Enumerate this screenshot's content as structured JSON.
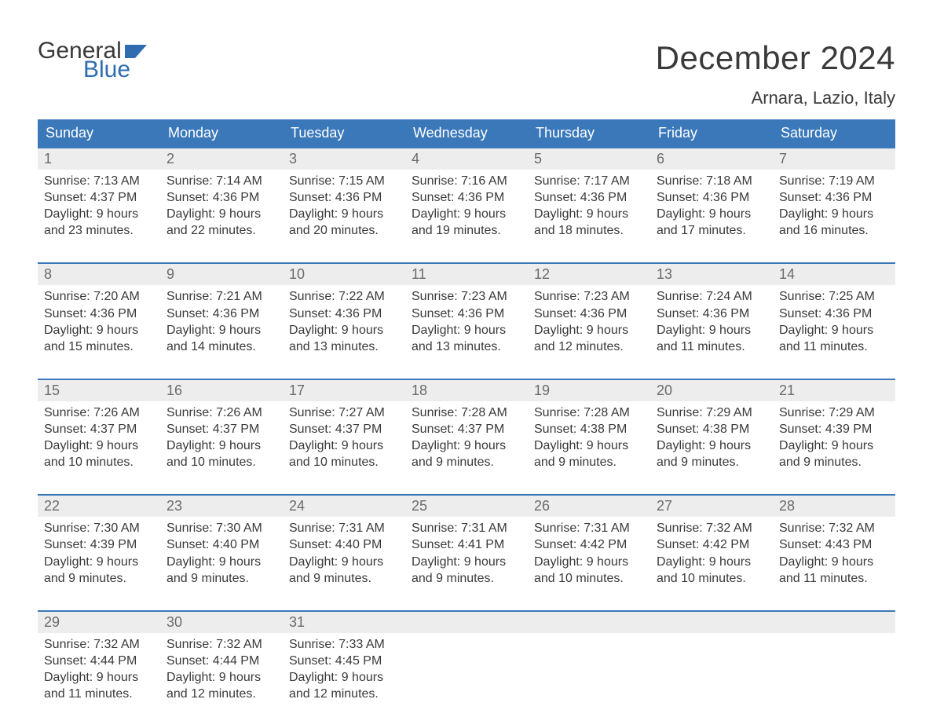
{
  "brand": {
    "word1": "General",
    "word2": "Blue"
  },
  "colors": {
    "header_bg": "#3a78b9",
    "header_text": "#ffffff",
    "daynum_bg": "#ededed",
    "daynum_text": "#6b6b6b",
    "body_text": "#3a3a3a",
    "week_border": "#3a78b9",
    "brand_blue": "#2f6db0",
    "page_bg": "#ffffff"
  },
  "typography": {
    "month_title_fontsize": 42,
    "location_fontsize": 22,
    "dow_fontsize": 18,
    "daynum_fontsize": 18,
    "body_fontsize": 16
  },
  "title": "December 2024",
  "location": "Arnara, Lazio, Italy",
  "days_of_week": [
    "Sunday",
    "Monday",
    "Tuesday",
    "Wednesday",
    "Thursday",
    "Friday",
    "Saturday"
  ],
  "layout": {
    "columns": 7,
    "rows": 5
  },
  "weeks": [
    [
      {
        "n": "1",
        "sunrise": "Sunrise: 7:13 AM",
        "sunset": "Sunset: 4:37 PM",
        "daylight": "Daylight: 9 hours and 23 minutes."
      },
      {
        "n": "2",
        "sunrise": "Sunrise: 7:14 AM",
        "sunset": "Sunset: 4:36 PM",
        "daylight": "Daylight: 9 hours and 22 minutes."
      },
      {
        "n": "3",
        "sunrise": "Sunrise: 7:15 AM",
        "sunset": "Sunset: 4:36 PM",
        "daylight": "Daylight: 9 hours and 20 minutes."
      },
      {
        "n": "4",
        "sunrise": "Sunrise: 7:16 AM",
        "sunset": "Sunset: 4:36 PM",
        "daylight": "Daylight: 9 hours and 19 minutes."
      },
      {
        "n": "5",
        "sunrise": "Sunrise: 7:17 AM",
        "sunset": "Sunset: 4:36 PM",
        "daylight": "Daylight: 9 hours and 18 minutes."
      },
      {
        "n": "6",
        "sunrise": "Sunrise: 7:18 AM",
        "sunset": "Sunset: 4:36 PM",
        "daylight": "Daylight: 9 hours and 17 minutes."
      },
      {
        "n": "7",
        "sunrise": "Sunrise: 7:19 AM",
        "sunset": "Sunset: 4:36 PM",
        "daylight": "Daylight: 9 hours and 16 minutes."
      }
    ],
    [
      {
        "n": "8",
        "sunrise": "Sunrise: 7:20 AM",
        "sunset": "Sunset: 4:36 PM",
        "daylight": "Daylight: 9 hours and 15 minutes."
      },
      {
        "n": "9",
        "sunrise": "Sunrise: 7:21 AM",
        "sunset": "Sunset: 4:36 PM",
        "daylight": "Daylight: 9 hours and 14 minutes."
      },
      {
        "n": "10",
        "sunrise": "Sunrise: 7:22 AM",
        "sunset": "Sunset: 4:36 PM",
        "daylight": "Daylight: 9 hours and 13 minutes."
      },
      {
        "n": "11",
        "sunrise": "Sunrise: 7:23 AM",
        "sunset": "Sunset: 4:36 PM",
        "daylight": "Daylight: 9 hours and 13 minutes."
      },
      {
        "n": "12",
        "sunrise": "Sunrise: 7:23 AM",
        "sunset": "Sunset: 4:36 PM",
        "daylight": "Daylight: 9 hours and 12 minutes."
      },
      {
        "n": "13",
        "sunrise": "Sunrise: 7:24 AM",
        "sunset": "Sunset: 4:36 PM",
        "daylight": "Daylight: 9 hours and 11 minutes."
      },
      {
        "n": "14",
        "sunrise": "Sunrise: 7:25 AM",
        "sunset": "Sunset: 4:36 PM",
        "daylight": "Daylight: 9 hours and 11 minutes."
      }
    ],
    [
      {
        "n": "15",
        "sunrise": "Sunrise: 7:26 AM",
        "sunset": "Sunset: 4:37 PM",
        "daylight": "Daylight: 9 hours and 10 minutes."
      },
      {
        "n": "16",
        "sunrise": "Sunrise: 7:26 AM",
        "sunset": "Sunset: 4:37 PM",
        "daylight": "Daylight: 9 hours and 10 minutes."
      },
      {
        "n": "17",
        "sunrise": "Sunrise: 7:27 AM",
        "sunset": "Sunset: 4:37 PM",
        "daylight": "Daylight: 9 hours and 10 minutes."
      },
      {
        "n": "18",
        "sunrise": "Sunrise: 7:28 AM",
        "sunset": "Sunset: 4:37 PM",
        "daylight": "Daylight: 9 hours and 9 minutes."
      },
      {
        "n": "19",
        "sunrise": "Sunrise: 7:28 AM",
        "sunset": "Sunset: 4:38 PM",
        "daylight": "Daylight: 9 hours and 9 minutes."
      },
      {
        "n": "20",
        "sunrise": "Sunrise: 7:29 AM",
        "sunset": "Sunset: 4:38 PM",
        "daylight": "Daylight: 9 hours and 9 minutes."
      },
      {
        "n": "21",
        "sunrise": "Sunrise: 7:29 AM",
        "sunset": "Sunset: 4:39 PM",
        "daylight": "Daylight: 9 hours and 9 minutes."
      }
    ],
    [
      {
        "n": "22",
        "sunrise": "Sunrise: 7:30 AM",
        "sunset": "Sunset: 4:39 PM",
        "daylight": "Daylight: 9 hours and 9 minutes."
      },
      {
        "n": "23",
        "sunrise": "Sunrise: 7:30 AM",
        "sunset": "Sunset: 4:40 PM",
        "daylight": "Daylight: 9 hours and 9 minutes."
      },
      {
        "n": "24",
        "sunrise": "Sunrise: 7:31 AM",
        "sunset": "Sunset: 4:40 PM",
        "daylight": "Daylight: 9 hours and 9 minutes."
      },
      {
        "n": "25",
        "sunrise": "Sunrise: 7:31 AM",
        "sunset": "Sunset: 4:41 PM",
        "daylight": "Daylight: 9 hours and 9 minutes."
      },
      {
        "n": "26",
        "sunrise": "Sunrise: 7:31 AM",
        "sunset": "Sunset: 4:42 PM",
        "daylight": "Daylight: 9 hours and 10 minutes."
      },
      {
        "n": "27",
        "sunrise": "Sunrise: 7:32 AM",
        "sunset": "Sunset: 4:42 PM",
        "daylight": "Daylight: 9 hours and 10 minutes."
      },
      {
        "n": "28",
        "sunrise": "Sunrise: 7:32 AM",
        "sunset": "Sunset: 4:43 PM",
        "daylight": "Daylight: 9 hours and 11 minutes."
      }
    ],
    [
      {
        "n": "29",
        "sunrise": "Sunrise: 7:32 AM",
        "sunset": "Sunset: 4:44 PM",
        "daylight": "Daylight: 9 hours and 11 minutes."
      },
      {
        "n": "30",
        "sunrise": "Sunrise: 7:32 AM",
        "sunset": "Sunset: 4:44 PM",
        "daylight": "Daylight: 9 hours and 12 minutes."
      },
      {
        "n": "31",
        "sunrise": "Sunrise: 7:33 AM",
        "sunset": "Sunset: 4:45 PM",
        "daylight": "Daylight: 9 hours and 12 minutes."
      },
      null,
      null,
      null,
      null
    ]
  ]
}
